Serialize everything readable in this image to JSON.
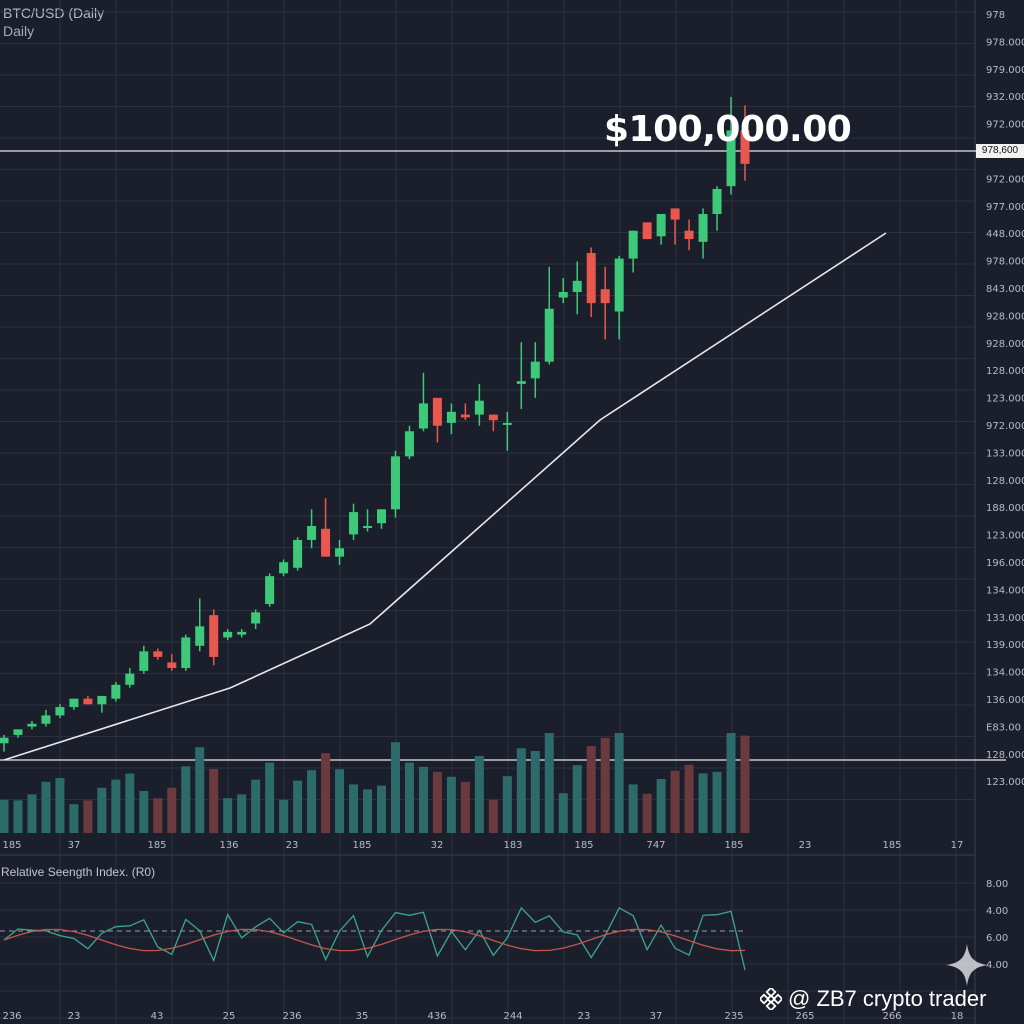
{
  "header": {
    "title": "BTC/USD (Daily",
    "subtitle": "Daily"
  },
  "annotation": {
    "price": "$100,000.00",
    "price_tag": "978,600"
  },
  "rsi": {
    "label": "Relative Seength Index. (R0)"
  },
  "watermark": {
    "text": "@ ZB7 crypto trader",
    "logo_icon": "binance-diamond-icon",
    "sparkle_icon": "four-point-star-icon"
  },
  "colors": {
    "up": "#3ec97a",
    "down": "#e8584f",
    "vol_up": "#2d6b6b",
    "vol_down": "#6b3a3f",
    "bg": "#1b1f2b",
    "grid": "#2b3040"
  },
  "chart_data": {
    "type": "candlestick",
    "title": "BTC/USD (Daily",
    "candles": [
      {
        "o": 6,
        "h": 9,
        "l": 3,
        "c": 8
      },
      {
        "o": 9,
        "h": 11,
        "l": 8,
        "c": 11
      },
      {
        "o": 12,
        "h": 14,
        "l": 11,
        "c": 13
      },
      {
        "o": 13,
        "h": 18,
        "l": 12,
        "c": 16
      },
      {
        "o": 16,
        "h": 20,
        "l": 15,
        "c": 19
      },
      {
        "o": 19,
        "h": 22,
        "l": 18,
        "c": 22
      },
      {
        "o": 22,
        "h": 23,
        "l": 20,
        "c": 20
      },
      {
        "o": 20,
        "h": 23,
        "l": 17,
        "c": 23
      },
      {
        "o": 22,
        "h": 28,
        "l": 21,
        "c": 27
      },
      {
        "o": 27,
        "h": 33,
        "l": 26,
        "c": 31
      },
      {
        "o": 32,
        "h": 41,
        "l": 31,
        "c": 39
      },
      {
        "o": 39,
        "h": 40,
        "l": 36,
        "c": 37
      },
      {
        "o": 35,
        "h": 38,
        "l": 32,
        "c": 33
      },
      {
        "o": 33,
        "h": 45,
        "l": 32,
        "c": 44
      },
      {
        "o": 41,
        "h": 58,
        "l": 39,
        "c": 48
      },
      {
        "o": 52,
        "h": 54,
        "l": 34,
        "c": 37
      },
      {
        "o": 44,
        "h": 47,
        "l": 43,
        "c": 46
      },
      {
        "o": 45,
        "h": 47,
        "l": 44,
        "c": 46
      },
      {
        "o": 49,
        "h": 54,
        "l": 47,
        "c": 53
      },
      {
        "o": 56,
        "h": 67,
        "l": 55,
        "c": 66
      },
      {
        "o": 67,
        "h": 72,
        "l": 66,
        "c": 71
      },
      {
        "o": 69,
        "h": 80,
        "l": 68,
        "c": 79
      },
      {
        "o": 79,
        "h": 90,
        "l": 76,
        "c": 84
      },
      {
        "o": 83,
        "h": 94,
        "l": 75,
        "c": 73
      },
      {
        "o": 73,
        "h": 79,
        "l": 70,
        "c": 76
      },
      {
        "o": 81,
        "h": 92,
        "l": 79,
        "c": 89
      },
      {
        "o": 84,
        "h": 90,
        "l": 82,
        "c": 84
      },
      {
        "o": 85,
        "h": 90,
        "l": 83,
        "c": 90
      },
      {
        "o": 90,
        "h": 111,
        "l": 87,
        "c": 109
      },
      {
        "o": 109,
        "h": 120,
        "l": 108,
        "c": 118
      },
      {
        "o": 119,
        "h": 139,
        "l": 118,
        "c": 128
      },
      {
        "o": 130,
        "h": 130,
        "l": 114,
        "c": 120
      },
      {
        "o": 121,
        "h": 128,
        "l": 117,
        "c": 125
      },
      {
        "o": 124,
        "h": 128,
        "l": 122,
        "c": 123
      },
      {
        "o": 124,
        "h": 135,
        "l": 120,
        "c": 129
      },
      {
        "o": 124,
        "h": 124,
        "l": 118,
        "c": 122
      },
      {
        "o": 121,
        "h": 125,
        "l": 111,
        "c": 121
      },
      {
        "o": 135,
        "h": 150,
        "l": 126,
        "c": 136
      },
      {
        "o": 137,
        "h": 150,
        "l": 130,
        "c": 143
      },
      {
        "o": 143,
        "h": 177,
        "l": 142,
        "c": 162
      },
      {
        "o": 166,
        "h": 173,
        "l": 164,
        "c": 168
      },
      {
        "o": 168,
        "h": 179,
        "l": 160,
        "c": 172
      },
      {
        "o": 182,
        "h": 184,
        "l": 159,
        "c": 164
      },
      {
        "o": 169,
        "h": 177,
        "l": 151,
        "c": 164
      },
      {
        "o": 161,
        "h": 181,
        "l": 151,
        "c": 180
      },
      {
        "o": 180,
        "h": 188,
        "l": 175,
        "c": 190
      },
      {
        "o": 193,
        "h": 193,
        "l": 187,
        "c": 187
      },
      {
        "o": 188,
        "h": 195,
        "l": 185,
        "c": 196
      },
      {
        "o": 198,
        "h": 196,
        "l": 185,
        "c": 194
      },
      {
        "o": 190,
        "h": 194,
        "l": 183,
        "c": 187
      },
      {
        "o": 186,
        "h": 198,
        "l": 180,
        "c": 196
      },
      {
        "o": 196,
        "h": 206,
        "l": 190,
        "c": 205
      },
      {
        "o": 206,
        "h": 238,
        "l": 203,
        "c": 226
      },
      {
        "o": 226,
        "h": 235,
        "l": 208,
        "c": 214
      }
    ],
    "trendline": "ascending",
    "annotation": "$100,000.00"
  }
}
